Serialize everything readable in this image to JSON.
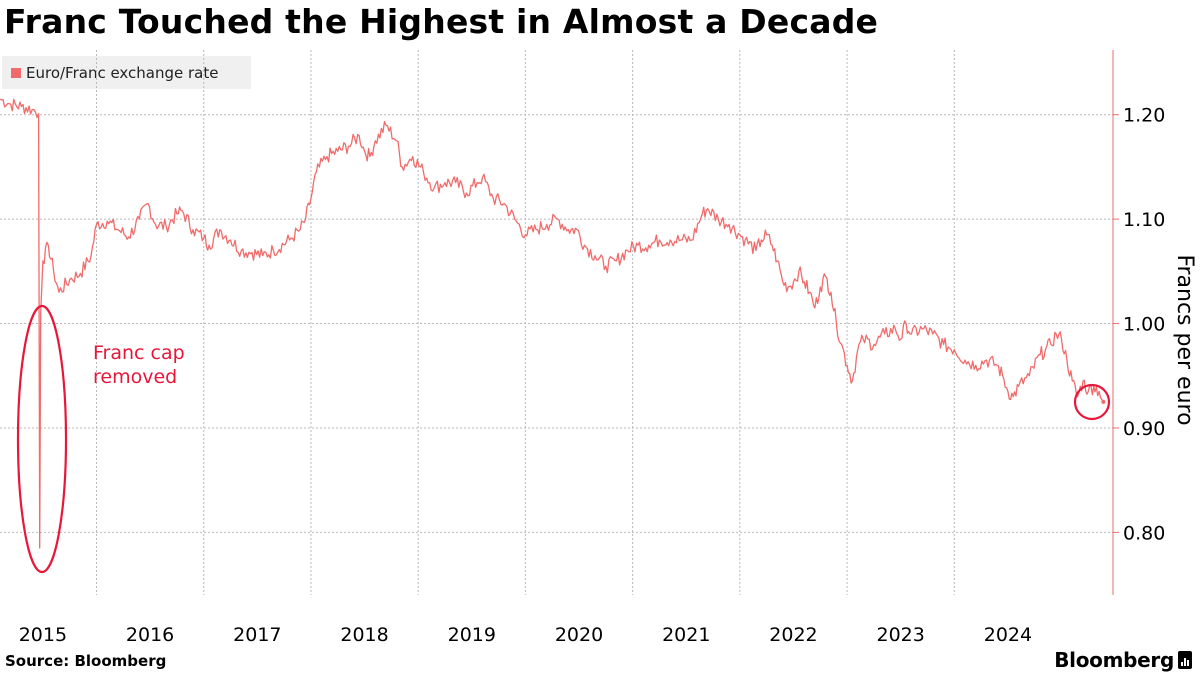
{
  "title": "Franc Touched the Highest in Almost a Decade",
  "legend": {
    "label": "Euro/Franc exchange rate"
  },
  "source": "Source: Bloomberg",
  "brand": "Bloomberg",
  "colors": {
    "series": "#f26b6b",
    "annotation": "#e8173a",
    "grid": "#b9b9b9",
    "axis": "#f26b6b"
  },
  "chart_data": {
    "type": "line",
    "title": "Franc Touched the Highest in Almost a Decade",
    "ylabel": "Francs per euro",
    "xlabel": "",
    "ylim": [
      0.74,
      1.262
    ],
    "xlim": [
      2014.6,
      2024.98
    ],
    "y_ticks": [
      0.8,
      0.9,
      1.0,
      1.1,
      1.2
    ],
    "y_tick_labels": [
      "0.80",
      "0.90",
      "1.00",
      "1.10",
      "1.20"
    ],
    "x_ticks": [
      2015,
      2016,
      2017,
      2018,
      2019,
      2020,
      2021,
      2022,
      2023,
      2024
    ],
    "x_tick_labels": [
      "2015",
      "2016",
      "2017",
      "2018",
      "2019",
      "2020",
      "2021",
      "2022",
      "2023",
      "2024"
    ],
    "x_grid": [
      2015.5,
      2016.5,
      2017.5,
      2018.5,
      2019.5,
      2020.5,
      2021.5,
      2022.5,
      2023.5
    ],
    "grid": true,
    "legend_position": "top-left",
    "series": [
      {
        "name": "Euro/Franc exchange rate",
        "points": [
          [
            2014.6,
            1.215
          ],
          [
            2014.7,
            1.21
          ],
          [
            2014.8,
            1.208
          ],
          [
            2014.9,
            1.205
          ],
          [
            2014.96,
            1.201
          ],
          [
            2014.97,
            0.785
          ],
          [
            2014.98,
            1.01
          ],
          [
            2015.0,
            1.06
          ],
          [
            2015.05,
            1.075
          ],
          [
            2015.1,
            1.05
          ],
          [
            2015.15,
            1.03
          ],
          [
            2015.25,
            1.042
          ],
          [
            2015.35,
            1.048
          ],
          [
            2015.45,
            1.065
          ],
          [
            2015.5,
            1.095
          ],
          [
            2015.6,
            1.098
          ],
          [
            2015.7,
            1.09
          ],
          [
            2015.8,
            1.083
          ],
          [
            2015.9,
            1.1
          ],
          [
            2015.98,
            1.115
          ],
          [
            2016.05,
            1.095
          ],
          [
            2016.15,
            1.093
          ],
          [
            2016.25,
            1.105
          ],
          [
            2016.3,
            1.108
          ],
          [
            2016.4,
            1.09
          ],
          [
            2016.5,
            1.082
          ],
          [
            2016.55,
            1.075
          ],
          [
            2016.65,
            1.09
          ],
          [
            2016.75,
            1.08
          ],
          [
            2016.85,
            1.07
          ],
          [
            2016.95,
            1.068
          ],
          [
            2017.05,
            1.065
          ],
          [
            2017.15,
            1.07
          ],
          [
            2017.3,
            1.08
          ],
          [
            2017.4,
            1.09
          ],
          [
            2017.45,
            1.1
          ],
          [
            2017.5,
            1.12
          ],
          [
            2017.55,
            1.145
          ],
          [
            2017.65,
            1.16
          ],
          [
            2017.75,
            1.165
          ],
          [
            2017.85,
            1.17
          ],
          [
            2017.95,
            1.18
          ],
          [
            2018.0,
            1.165
          ],
          [
            2018.05,
            1.16
          ],
          [
            2018.1,
            1.175
          ],
          [
            2018.2,
            1.19
          ],
          [
            2018.3,
            1.175
          ],
          [
            2018.35,
            1.15
          ],
          [
            2018.45,
            1.16
          ],
          [
            2018.55,
            1.145
          ],
          [
            2018.65,
            1.13
          ],
          [
            2018.75,
            1.135
          ],
          [
            2018.85,
            1.135
          ],
          [
            2018.95,
            1.125
          ],
          [
            2019.05,
            1.135
          ],
          [
            2019.1,
            1.14
          ],
          [
            2019.2,
            1.12
          ],
          [
            2019.3,
            1.115
          ],
          [
            2019.4,
            1.1
          ],
          [
            2019.5,
            1.085
          ],
          [
            2019.6,
            1.09
          ],
          [
            2019.7,
            1.095
          ],
          [
            2019.8,
            1.1
          ],
          [
            2019.9,
            1.09
          ],
          [
            2019.98,
            1.09
          ],
          [
            2020.05,
            1.075
          ],
          [
            2020.15,
            1.065
          ],
          [
            2020.25,
            1.055
          ],
          [
            2020.35,
            1.06
          ],
          [
            2020.45,
            1.07
          ],
          [
            2020.55,
            1.075
          ],
          [
            2020.65,
            1.075
          ],
          [
            2020.75,
            1.08
          ],
          [
            2020.85,
            1.08
          ],
          [
            2020.95,
            1.08
          ],
          [
            2021.05,
            1.08
          ],
          [
            2021.15,
            1.105
          ],
          [
            2021.2,
            1.11
          ],
          [
            2021.3,
            1.1
          ],
          [
            2021.4,
            1.095
          ],
          [
            2021.5,
            1.085
          ],
          [
            2021.55,
            1.08
          ],
          [
            2021.65,
            1.07
          ],
          [
            2021.7,
            1.08
          ],
          [
            2021.75,
            1.085
          ],
          [
            2021.8,
            1.075
          ],
          [
            2021.85,
            1.06
          ],
          [
            2021.9,
            1.04
          ],
          [
            2021.95,
            1.035
          ],
          [
            2022.0,
            1.04
          ],
          [
            2022.05,
            1.05
          ],
          [
            2022.1,
            1.04
          ],
          [
            2022.15,
            1.03
          ],
          [
            2022.2,
            1.015
          ],
          [
            2022.25,
            1.035
          ],
          [
            2022.3,
            1.045
          ],
          [
            2022.35,
            1.03
          ],
          [
            2022.4,
            1.0
          ],
          [
            2022.45,
            0.98
          ],
          [
            2022.5,
            0.96
          ],
          [
            2022.55,
            0.945
          ],
          [
            2022.6,
            0.975
          ],
          [
            2022.65,
            0.985
          ],
          [
            2022.75,
            0.98
          ],
          [
            2022.85,
            0.99
          ],
          [
            2022.95,
            0.995
          ],
          [
            2023.0,
            0.985
          ],
          [
            2023.05,
            1.0
          ],
          [
            2023.1,
            0.99
          ],
          [
            2023.2,
            0.995
          ],
          [
            2023.3,
            0.99
          ],
          [
            2023.4,
            0.98
          ],
          [
            2023.5,
            0.975
          ],
          [
            2023.6,
            0.965
          ],
          [
            2023.7,
            0.96
          ],
          [
            2023.8,
            0.965
          ],
          [
            2023.9,
            0.96
          ],
          [
            2023.95,
            0.95
          ],
          [
            2024.0,
            0.935
          ],
          [
            2024.05,
            0.93
          ],
          [
            2024.1,
            0.94
          ],
          [
            2024.2,
            0.95
          ],
          [
            2024.3,
            0.97
          ],
          [
            2024.35,
            0.975
          ],
          [
            2024.4,
            0.98
          ],
          [
            2024.45,
            0.99
          ],
          [
            2024.5,
            0.985
          ],
          [
            2024.55,
            0.965
          ],
          [
            2024.6,
            0.945
          ],
          [
            2024.65,
            0.93
          ],
          [
            2024.7,
            0.945
          ],
          [
            2024.75,
            0.935
          ],
          [
            2024.8,
            0.94
          ],
          [
            2024.85,
            0.935
          ],
          [
            2024.89,
            0.925
          ]
        ]
      }
    ],
    "annotations": [
      {
        "text_lines": [
          "Franc cap",
          "removed"
        ],
        "marks": "Jan 2015 drop"
      }
    ]
  }
}
